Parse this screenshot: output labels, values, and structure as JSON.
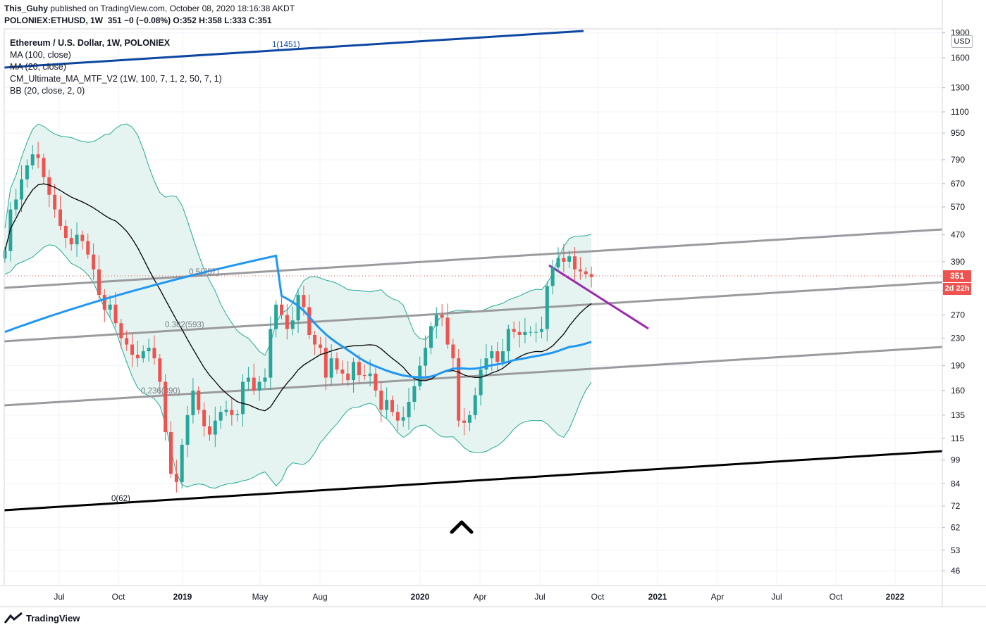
{
  "header": {
    "publisher": "This_Guhy",
    "published_text": "published on TradingView.com, October 08, 2020 18:16:38 AKDT",
    "symbol": "POLONIEX:ETHUSD, 1W",
    "ohlc_text": "351 −0 (−0.08%) O:352 H:358 L:333 C:351"
  },
  "legend": {
    "title": "Ethereum / U.S. Dollar, 1W, POLONIEX",
    "indicators": [
      "MA (100, close)",
      "MA (20, close)",
      "CM_Ultimate_MA_MTF_V2 (1W, 100, 7, 1, 2, 50, 7, 1)",
      "BB (20, close, 2, 0)"
    ]
  },
  "price_scale": {
    "currency": "USD",
    "last_price": "351",
    "countdown": "2d 22h"
  },
  "footer": {
    "brand": "TradingView"
  },
  "chart_data": {
    "type": "line",
    "scale": "log",
    "ylim": [
      40,
      1950
    ],
    "y_ticks": [
      46,
      53,
      62,
      72,
      84,
      99,
      115,
      135,
      160,
      190,
      230,
      270,
      320,
      390,
      470,
      570,
      670,
      790,
      950,
      1100,
      1300,
      1600,
      1900
    ],
    "x_labels": [
      "Jul",
      "Oct",
      "2019",
      "May",
      "Aug",
      "2020",
      "Apr",
      "Jul",
      "Oct",
      "2021",
      "Apr",
      "Jul",
      "Oct",
      "2022"
    ],
    "fib_labels": [
      "1(1451)",
      "0.5(757)",
      "0.382(593)",
      "0.236(390)",
      "0(62)"
    ],
    "colors": {
      "up": "#26a69a",
      "down": "#ef5350",
      "bb": "#22ab94",
      "bb_fill": "#e6f4f1",
      "ma100": "#2196f3",
      "ma20": "#000000",
      "channel": "#9b9b9f",
      "top_line": "#0d47a1",
      "magenta": "#9c27b0"
    },
    "closes": [
      420,
      560,
      600,
      690,
      760,
      820,
      800,
      700,
      620,
      560,
      500,
      460,
      440,
      470,
      450,
      410,
      370,
      310,
      280,
      290,
      255,
      230,
      220,
      205,
      200,
      210,
      215,
      200,
      170,
      120,
      90,
      85,
      110,
      135,
      160,
      140,
      125,
      118,
      130,
      138,
      140,
      135,
      136,
      170,
      175,
      160,
      170,
      175,
      245,
      290,
      270,
      245,
      260,
      310,
      285,
      235,
      220,
      215,
      175,
      200,
      185,
      180,
      172,
      195,
      178,
      177,
      180,
      160,
      140,
      150,
      138,
      130,
      133,
      148,
      165,
      190,
      215,
      250,
      270,
      265,
      220,
      200,
      130,
      128,
      135,
      155,
      185,
      200,
      210,
      195,
      210,
      245,
      240,
      235,
      240,
      240,
      240,
      245,
      330,
      375,
      400,
      390,
      405,
      370,
      365,
      358,
      351
    ]
  }
}
